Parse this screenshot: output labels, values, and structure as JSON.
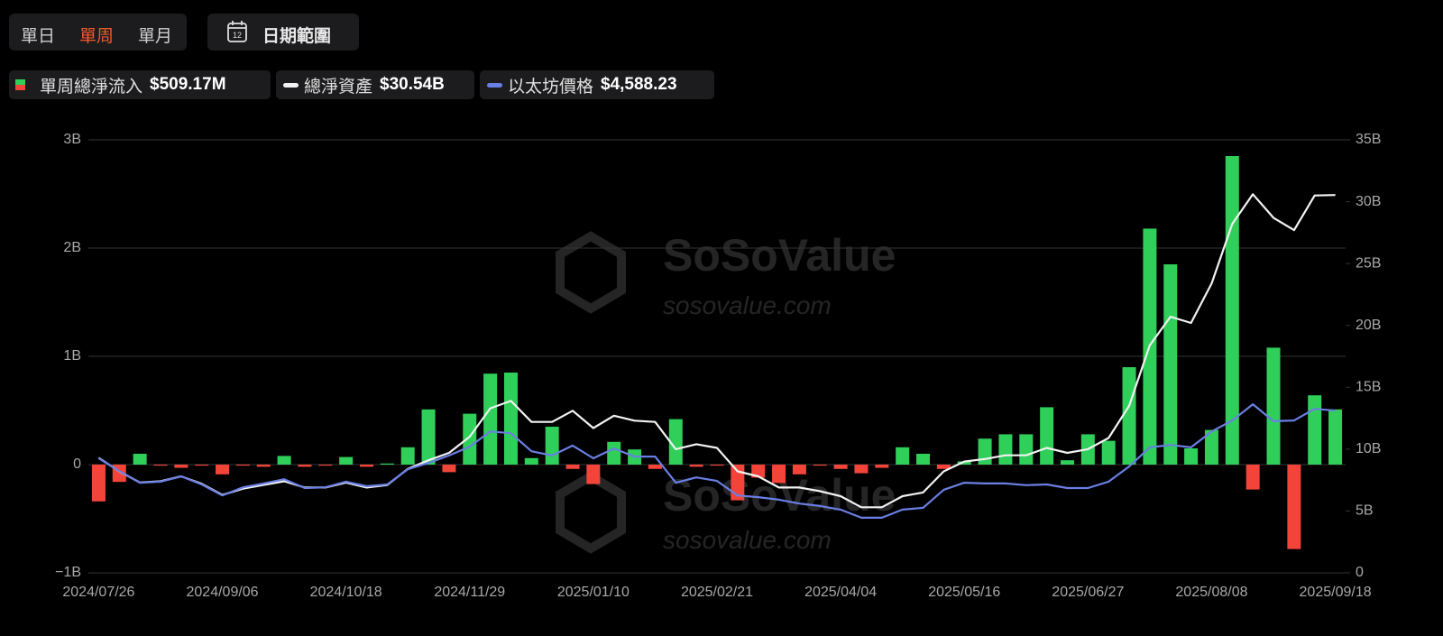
{
  "tabs": [
    "單日",
    "單周",
    "單月"
  ],
  "active_tab": 1,
  "date_button": "日期範圍",
  "calendar_day": "12",
  "watermark": {
    "brand": "SoSoValue",
    "url": "sosovalue.com"
  },
  "chart_data": {
    "type": "bar",
    "categories": [
      "2024/07/26",
      null,
      null,
      null,
      null,
      null,
      "2024/09/06",
      null,
      null,
      null,
      null,
      null,
      "2024/10/18",
      null,
      null,
      null,
      null,
      null,
      "2024/11/29",
      null,
      null,
      null,
      null,
      null,
      "2025/01/10",
      null,
      null,
      null,
      null,
      null,
      "2025/02/21",
      null,
      null,
      null,
      null,
      null,
      "2025/04/04",
      null,
      null,
      null,
      null,
      null,
      "2025/05/16",
      null,
      null,
      null,
      null,
      null,
      "2025/06/27",
      null,
      null,
      null,
      null,
      null,
      "2025/08/08",
      null,
      null,
      null,
      null,
      null,
      "2025/09/18"
    ],
    "ylim": [
      -1,
      3
    ],
    "yticks": [
      {
        "value": -1,
        "label": "−1B"
      },
      0,
      {
        "value": 1,
        "label": "1B"
      },
      {
        "value": 2,
        "label": "2B"
      },
      {
        "value": 3,
        "label": "3B"
      }
    ],
    "y2lim": [
      0,
      35
    ],
    "y2ticks": [
      0,
      {
        "value": 5,
        "label": "5B"
      },
      {
        "value": 10,
        "label": "10B"
      },
      {
        "value": 15,
        "label": "15B"
      },
      {
        "value": 20,
        "label": "20B"
      },
      {
        "value": 25,
        "label": "25B"
      },
      {
        "value": 30,
        "label": "30B"
      },
      {
        "value": 35,
        "label": "35B"
      }
    ],
    "y3lim": [
      0,
      12250
    ],
    "grid": true,
    "series": [
      {
        "name": "單周總淨流入",
        "summary": "$509.17M",
        "type": "bar",
        "color": "#2fcf59",
        "negative_color": "#f3443a",
        "values": [
          -0.34,
          -0.16,
          0.1,
          -0.01,
          -0.03,
          -0.01,
          -0.09,
          -0.01,
          -0.02,
          0.08,
          -0.02,
          -0.01,
          0.07,
          -0.02,
          0.01,
          0.16,
          0.51,
          -0.07,
          0.47,
          0.84,
          0.85,
          0.06,
          0.35,
          -0.04,
          -0.18,
          0.21,
          0.14,
          -0.04,
          0.42,
          -0.02,
          -0.01,
          -0.33,
          -0.12,
          -0.17,
          -0.09,
          -0.01,
          -0.04,
          -0.08,
          -0.03,
          0.16,
          0.1,
          -0.04,
          0.03,
          0.24,
          0.28,
          0.28,
          0.53,
          0.04,
          0.28,
          0.22,
          0.9,
          2.18,
          1.85,
          0.15,
          0.32,
          2.85,
          -0.23,
          1.08,
          -0.78,
          0.64,
          0.51
        ]
      },
      {
        "name": "總淨資產",
        "summary": "$30.54B",
        "type": "line",
        "axis": "y2",
        "color": "#f2f2f2",
        "values": [
          9.3,
          8.2,
          7.3,
          7.4,
          7.8,
          7.2,
          6.3,
          6.8,
          7.1,
          7.4,
          6.9,
          6.9,
          7.3,
          6.9,
          7.1,
          8.4,
          9.1,
          9.7,
          11.0,
          13.3,
          13.9,
          12.2,
          12.2,
          13.1,
          11.7,
          12.7,
          12.3,
          12.2,
          10.0,
          10.4,
          10.1,
          8.2,
          7.8,
          6.9,
          6.9,
          6.6,
          6.2,
          5.3,
          5.3,
          6.2,
          6.5,
          8.2,
          9.0,
          9.2,
          9.5,
          9.5,
          10.1,
          9.7,
          10.0,
          10.9,
          13.5,
          18.4,
          20.7,
          20.2,
          23.4,
          28.2,
          30.6,
          28.7,
          27.7,
          30.5,
          30.54
        ]
      },
      {
        "name": "以太坊價格",
        "summary": "$4,588.23",
        "type": "line",
        "axis": "y3",
        "color": "#6a7fe3",
        "values": [
          3240,
          2880,
          2550,
          2580,
          2730,
          2500,
          2190,
          2420,
          2530,
          2650,
          2400,
          2420,
          2580,
          2450,
          2500,
          2930,
          3110,
          3320,
          3570,
          4000,
          3950,
          3440,
          3320,
          3600,
          3240,
          3520,
          3290,
          3290,
          2550,
          2700,
          2600,
          2190,
          2140,
          2070,
          1960,
          1890,
          1790,
          1560,
          1560,
          1790,
          1840,
          2350,
          2550,
          2530,
          2530,
          2480,
          2500,
          2400,
          2400,
          2580,
          3010,
          3550,
          3620,
          3550,
          4000,
          4310,
          4770,
          4290,
          4310,
          4640,
          4588.23
        ]
      }
    ]
  }
}
